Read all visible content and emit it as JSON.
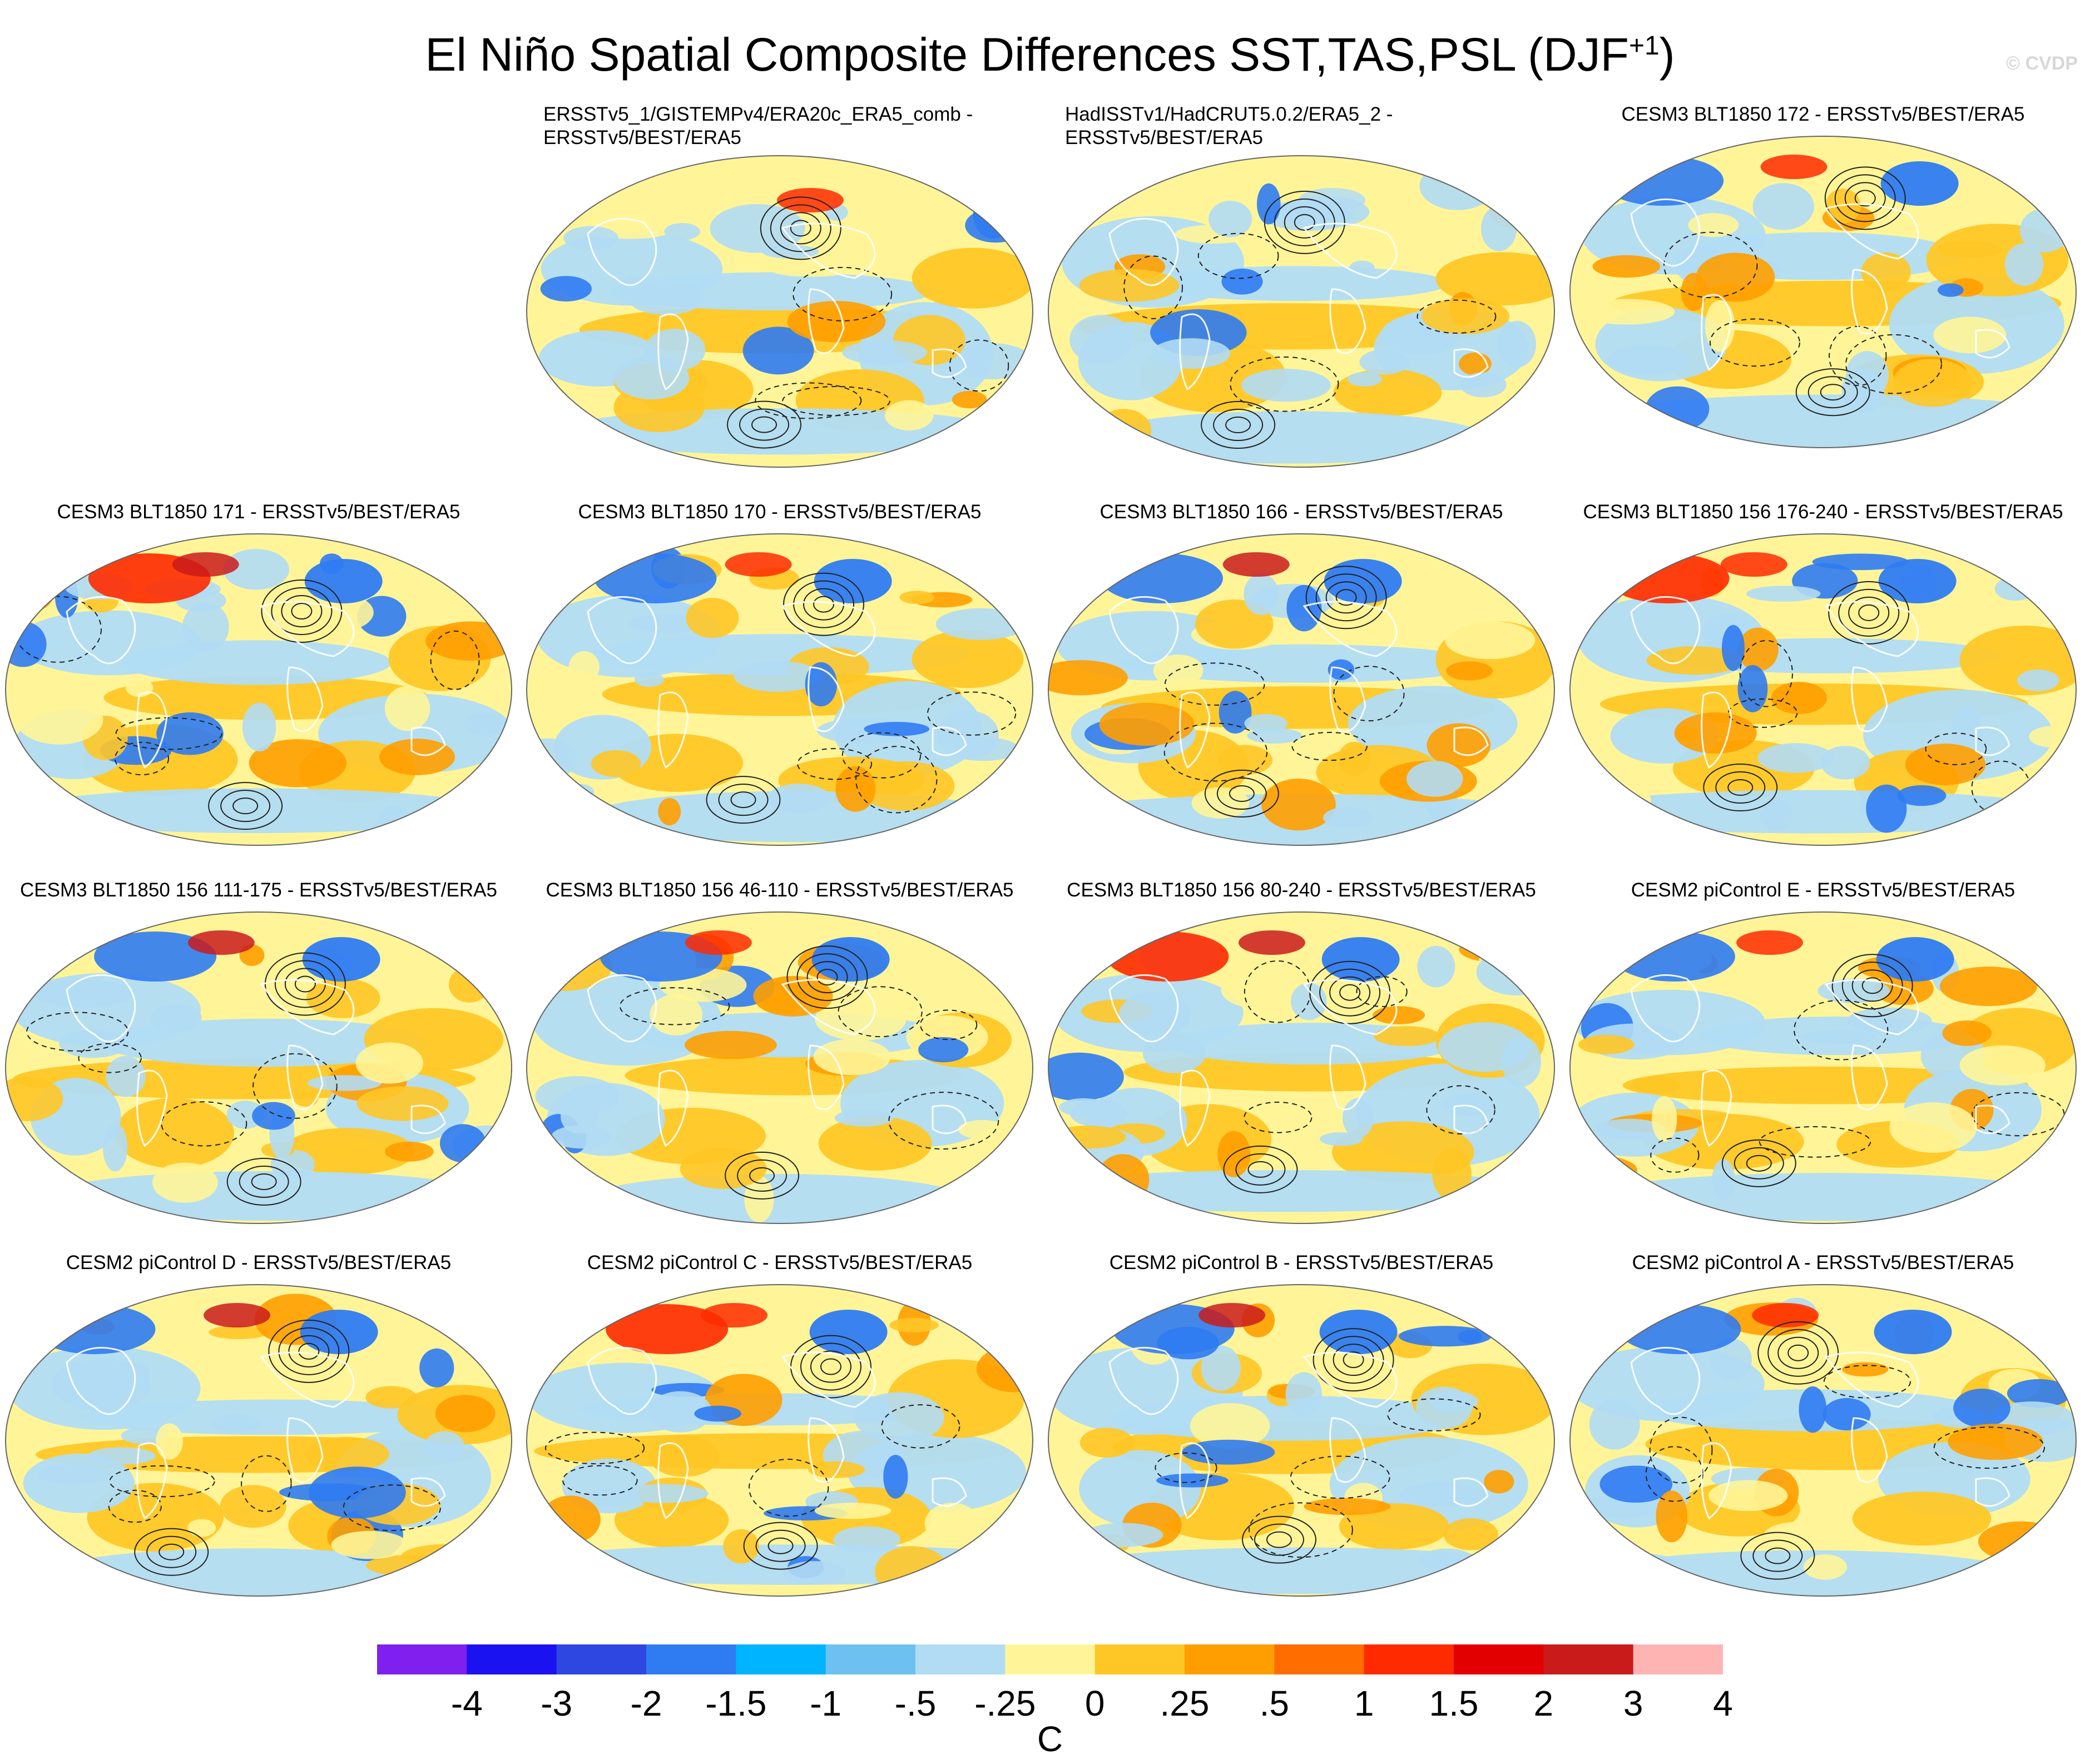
{
  "title": {
    "main": "El Niño Spatial Composite Differences SST,TAS,PSL (DJF",
    "sup": "+1",
    "close": ")"
  },
  "watermark": "© CVDP",
  "panels": [
    {
      "title": "ERSSTv5_1/GISTEMPv4/ERA20c_ERA5_comb -\nERSSTv5/BEST/ERA5",
      "two_line": true
    },
    {
      "title": "HadISSTv1/HadCRUT5.0.2/ERA5_2 -\nERSSTv5/BEST/ERA5",
      "two_line": true
    },
    {
      "title": "CESM3 BLT1850 172 - ERSSTv5/BEST/ERA5"
    },
    {
      "title": "CESM3 BLT1850 171 - ERSSTv5/BEST/ERA5"
    },
    {
      "title": "CESM3 BLT1850 170 - ERSSTv5/BEST/ERA5"
    },
    {
      "title": "CESM3 BLT1850 166 - ERSSTv5/BEST/ERA5"
    },
    {
      "title": "CESM3 BLT1850 156 176-240 - ERSSTv5/BEST/ERA5"
    },
    {
      "title": "CESM3 BLT1850 156 111-175 - ERSSTv5/BEST/ERA5"
    },
    {
      "title": "CESM3 BLT1850 156 46-110 - ERSSTv5/BEST/ERA5"
    },
    {
      "title": "CESM3 BLT1850 156 80-240 - ERSSTv5/BEST/ERA5"
    },
    {
      "title": "CESM2 piControl E - ERSSTv5/BEST/ERA5"
    },
    {
      "title": "CESM2 piControl D - ERSSTv5/BEST/ERA5"
    },
    {
      "title": "CESM2 piControl C - ERSSTv5/BEST/ERA5"
    },
    {
      "title": "CESM2 piControl B - ERSSTv5/BEST/ERA5"
    },
    {
      "title": "CESM2 piControl A - ERSSTv5/BEST/ERA5"
    }
  ],
  "colorbar": {
    "colors": [
      "#8020ee",
      "#1b12f2",
      "#2d47e0",
      "#2f7bf2",
      "#00b4ff",
      "#6dc1f0",
      "#b1dcf4",
      "#fff598",
      "#ffc726",
      "#ff9e00",
      "#ff6c00",
      "#ff2a00",
      "#e30000",
      "#ca1b1b",
      "#ffb4b4"
    ],
    "labels": [
      "-4",
      "-3",
      "-2",
      "-1.5",
      "-1",
      "-.5",
      "-.25",
      "0",
      ".25",
      ".5",
      "1",
      "1.5",
      "2",
      "3",
      "4"
    ],
    "units": "C"
  }
}
